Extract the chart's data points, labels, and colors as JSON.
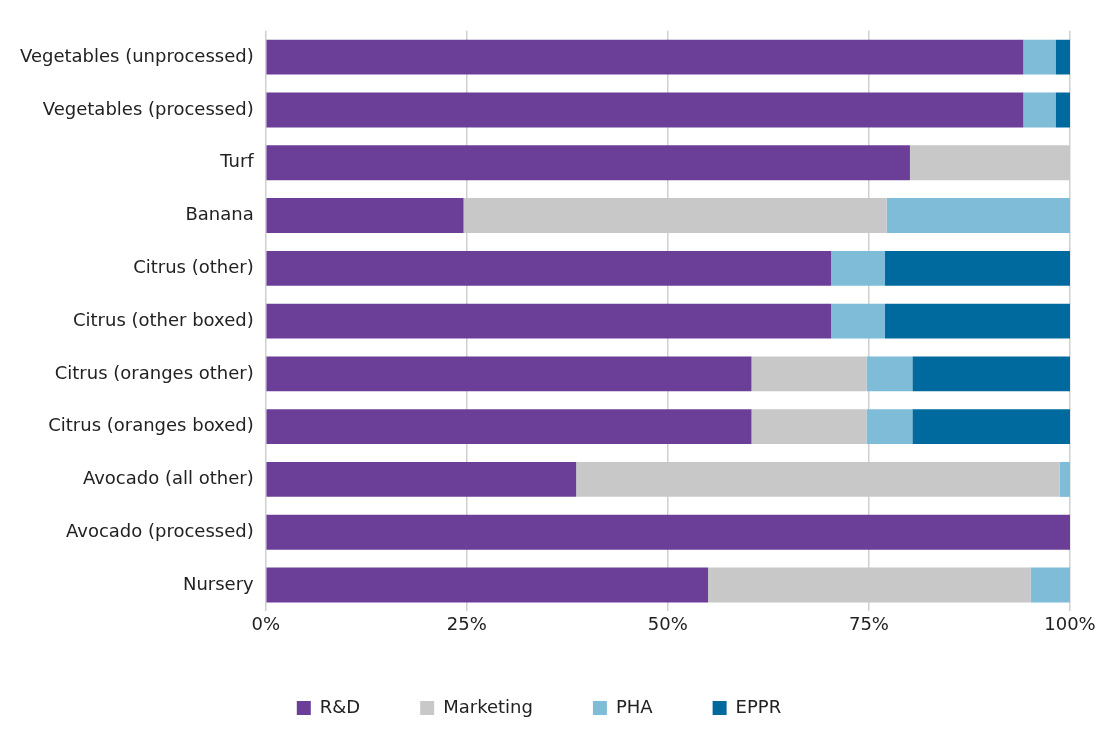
{
  "chart_data": {
    "type": "bar",
    "orientation": "horizontal",
    "stacked": true,
    "categories": [
      "Vegetables (unprocessed)",
      "Vegetables (processed)",
      "Turf",
      "Banana",
      "Citrus (other)",
      "Citrus (other boxed)",
      "Citrus (oranges other)",
      "Citrus (oranges boxed)",
      "Avocado (all other)",
      "Avocado (processed)",
      "Nursery"
    ],
    "series": [
      {
        "name": "R&D",
        "color": "#6b3f98",
        "values": [
          94.2,
          94.2,
          80.1,
          24.6,
          70.3,
          70.3,
          60.4,
          60.4,
          38.6,
          100,
          55.0
        ]
      },
      {
        "name": "Marketing",
        "color": "#c8c8c8",
        "values": [
          null,
          null,
          19.9,
          52.6,
          null,
          null,
          14.3,
          14.3,
          60.1,
          null,
          40.1
        ]
      },
      {
        "name": "PHA",
        "color": "#7fbcd8",
        "values": [
          4.0,
          4.0,
          null,
          22.8,
          6.7,
          6.7,
          5.7,
          5.7,
          1.3,
          null,
          4.9
        ]
      },
      {
        "name": "EPPR",
        "color": "#006a9e",
        "values": [
          1.8,
          1.8,
          null,
          null,
          23.0,
          23.0,
          19.6,
          19.6,
          null,
          null,
          null
        ]
      }
    ],
    "xlim": [
      0,
      100
    ],
    "xticks": [
      {
        "value": 0,
        "label": "0%"
      },
      {
        "value": 25,
        "label": "25%"
      },
      {
        "value": 50,
        "label": "50%"
      },
      {
        "value": 75,
        "label": "75%"
      },
      {
        "value": 100,
        "label": "100%"
      }
    ],
    "grid": "x",
    "legend": "bottom"
  }
}
